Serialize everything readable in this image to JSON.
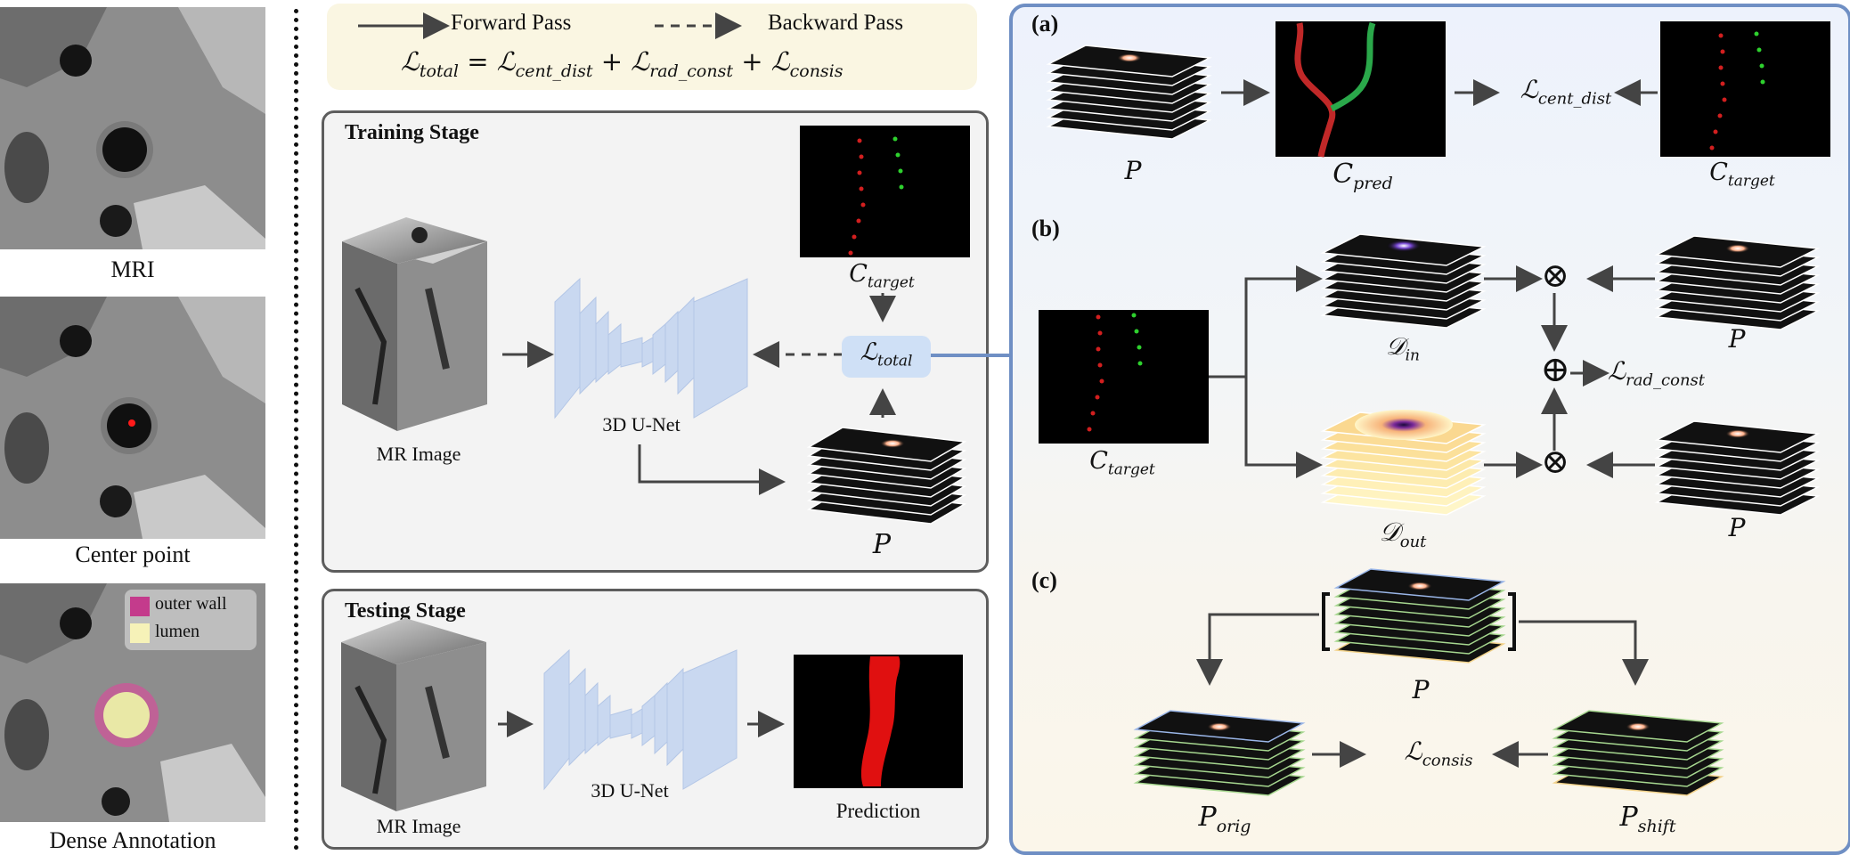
{
  "left_column": {
    "mri_caption": "MRI",
    "center_caption": "Center point",
    "dense_caption": "Dense Annotation",
    "legend_outer_wall": "outer wall",
    "legend_lumen": "lumen"
  },
  "legend": {
    "forward": "Forward Pass",
    "backward": "Backward Pass",
    "total_lhs": "ℒ",
    "total_lhs_sub": "total",
    "eq": "=",
    "t1": "ℒ",
    "t1_sub": "cent_dist",
    "plus1": "+",
    "t2": "ℒ",
    "t2_sub": "rad_const",
    "plus2": "+",
    "t3": "ℒ",
    "t3_sub": "consis"
  },
  "training": {
    "title": "Training Stage",
    "mr_image": "MR Image",
    "unet": "3D U-Net",
    "c_target": "C",
    "c_target_sub": "target",
    "loss": "ℒ",
    "loss_sub": "total",
    "p": "P"
  },
  "testing": {
    "title": "Testing Stage",
    "mr_image": "MR Image",
    "unet": "3D U-Net",
    "prediction": "Prediction"
  },
  "panel_a": {
    "label": "(a)",
    "p": "P",
    "c_pred": "C",
    "c_pred_sub": "pred",
    "loss": "ℒ",
    "loss_sub": "cent_dist",
    "c_target": "C",
    "c_target_sub": "target"
  },
  "panel_b": {
    "label": "(b)",
    "c_target": "C",
    "c_target_sub": "target",
    "d_in": "𝒟",
    "d_in_sub": "in",
    "d_out": "𝒟",
    "d_out_sub": "out",
    "p_top": "P",
    "p_bottom": "P",
    "loss": "ℒ",
    "loss_sub": "rad_const",
    "otimes": "⊗",
    "oplus": "⊕"
  },
  "panel_c": {
    "label": "(c)",
    "p": "P",
    "p_orig": "P",
    "p_orig_sub": "orig",
    "loss": "ℒ",
    "loss_sub": "consis",
    "p_shift": "P",
    "p_shift_sub": "shift"
  }
}
